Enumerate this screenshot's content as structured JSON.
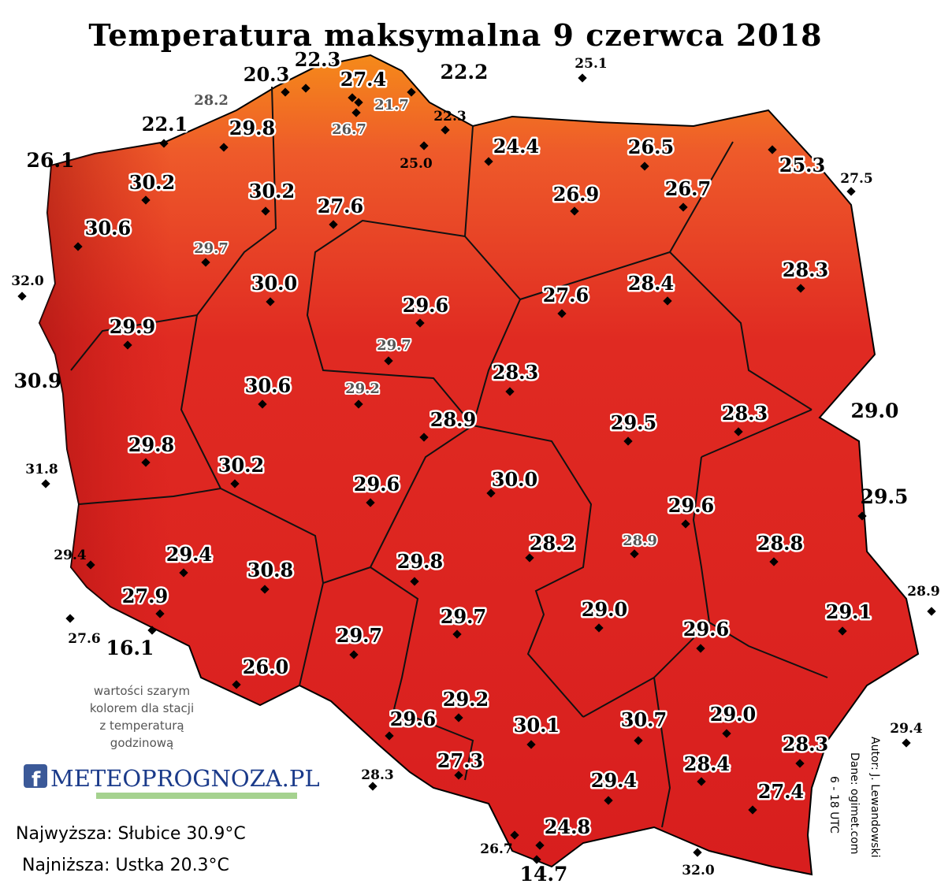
{
  "title": "Temperatura maksymalna 9 czerwca 2018",
  "stations": [
    "20.3",
    "22.3",
    "27.4",
    "21.7",
    "26.7",
    "22.2",
    "22.3",
    "25.1",
    "28.2",
    "29.8",
    "22.1",
    "26.1",
    "25.0",
    "24.4",
    "26.5",
    "25.3",
    "27.5",
    "30.2",
    "30.2",
    "27.6",
    "26.9",
    "26.7",
    "30.6",
    "29.7",
    "32.0",
    "30.0",
    "28.3",
    "29.6",
    "27.6",
    "28.4",
    "29.9",
    "29.7",
    "30.9",
    "30.6",
    "29.2",
    "28.3",
    "28.9",
    "29.5",
    "28.3",
    "29.0",
    "31.8",
    "29.8",
    "30.2",
    "29.6",
    "30.0",
    "29.6",
    "29.5",
    "29.4",
    "29.4",
    "28.2",
    "28.9",
    "28.8",
    "30.8",
    "29.8",
    "28.9",
    "27.9",
    "29.0",
    "29.1",
    "29.7",
    "29.6",
    "27.6",
    "16.1",
    "29.7",
    "26.0",
    "29.2",
    "29.0",
    "29.6",
    "30.1",
    "30.7",
    "28.3",
    "29.4",
    "28.3",
    "27.3",
    "28.4",
    "29.4",
    "27.4",
    "24.8",
    "26.7",
    "32.0",
    "14.7"
  ],
  "note": [
    "wartości szarym",
    "kolorem dla stacji",
    "z temperaturą",
    "godzinową"
  ],
  "logo": "METEOPROGNOZA.PL",
  "summary": [
    "Najwyższa: Słubice 30.9°C",
    "Najniższa: Ustka 20.3°C"
  ],
  "credits": [
    "Autor: J. Lewandowski",
    "Dane: ogimet.com",
    "6 - 18 UTC"
  ]
}
